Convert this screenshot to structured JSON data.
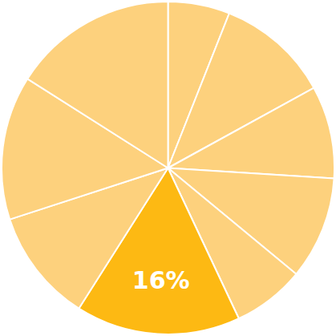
{
  "chart_data": {
    "type": "pie",
    "values": [
      6,
      11,
      9,
      10,
      7,
      16,
      11,
      14,
      16
    ],
    "value_labels": [
      null,
      null,
      null,
      null,
      null,
      "16%",
      null,
      null,
      null
    ],
    "data_labels": true,
    "colors": [
      "#fdd17d",
      "#fdd17d",
      "#fdd17d",
      "#fdd17d",
      "#fdd17d",
      "#fdb913",
      "#fdd17d",
      "#fdd17d",
      "#fdd17d"
    ]
  }
}
